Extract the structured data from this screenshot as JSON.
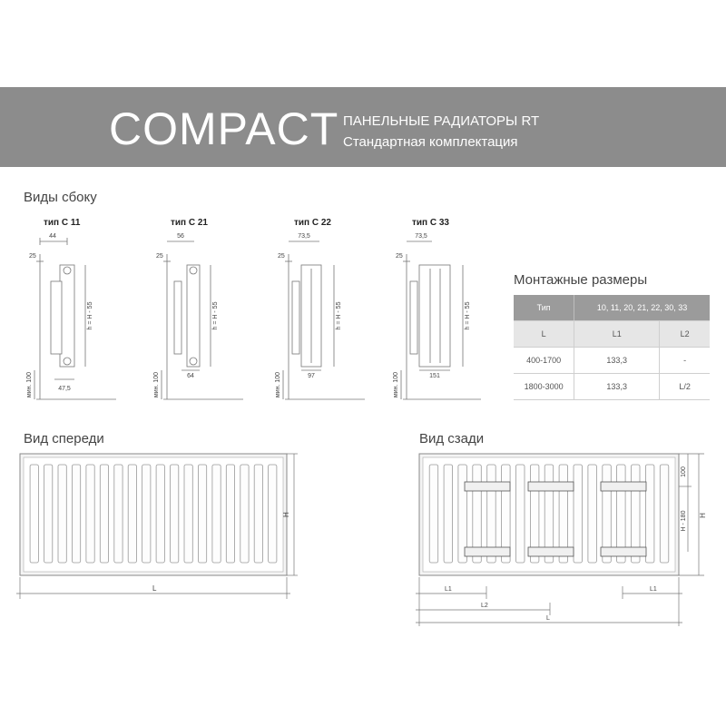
{
  "header": {
    "brand": "COMPACT",
    "subtitle1": "ПАНЕЛЬНЫЕ РАДИАТОРЫ RT",
    "subtitle2": "Стандартная комплектация",
    "banner_color": "#8c8c8c"
  },
  "side_views": {
    "title": "Виды сбоку",
    "types": [
      {
        "label": "тип C 11",
        "top_dim": "44",
        "depth_dim": "47,5",
        "wall": "25",
        "height_dim": "h = H - 55",
        "floor_dim": "мин. 100"
      },
      {
        "label": "тип C 21",
        "top_dim": "56",
        "depth_dim": "64",
        "wall": "25",
        "height_dim": "h = H - 55",
        "floor_dim": "мин. 100"
      },
      {
        "label": "тип C 22",
        "top_dim": "73,5",
        "depth_dim": "97",
        "wall": "25",
        "height_dim": "h = H - 55",
        "floor_dim": "мин. 100"
      },
      {
        "label": "тип C 33",
        "top_dim": "73,5",
        "depth_dim": "151",
        "wall": "25",
        "height_dim": "h = H - 55",
        "floor_dim": "мин. 100"
      }
    ]
  },
  "mounting": {
    "title": "Монтажные размеры",
    "head": [
      "Тип",
      "10, 11, 20, 21, 22, 30, 33"
    ],
    "subhead": [
      "L",
      "L1",
      "L2"
    ],
    "rows": [
      [
        "400-1700",
        "133,3",
        "-"
      ],
      [
        "1800-3000",
        "133,3",
        "L/2"
      ]
    ]
  },
  "front_view": {
    "title": "Вид спереди",
    "dim_h": "H",
    "dim_l": "L"
  },
  "rear_view": {
    "title": "Вид сзади",
    "dim_100": "100",
    "dim_h180": "H - 180",
    "dim_h": "H",
    "dim_l1_left": "L1",
    "dim_l1_right": "L1",
    "dim_l2": "L2",
    "dim_l": "L"
  }
}
